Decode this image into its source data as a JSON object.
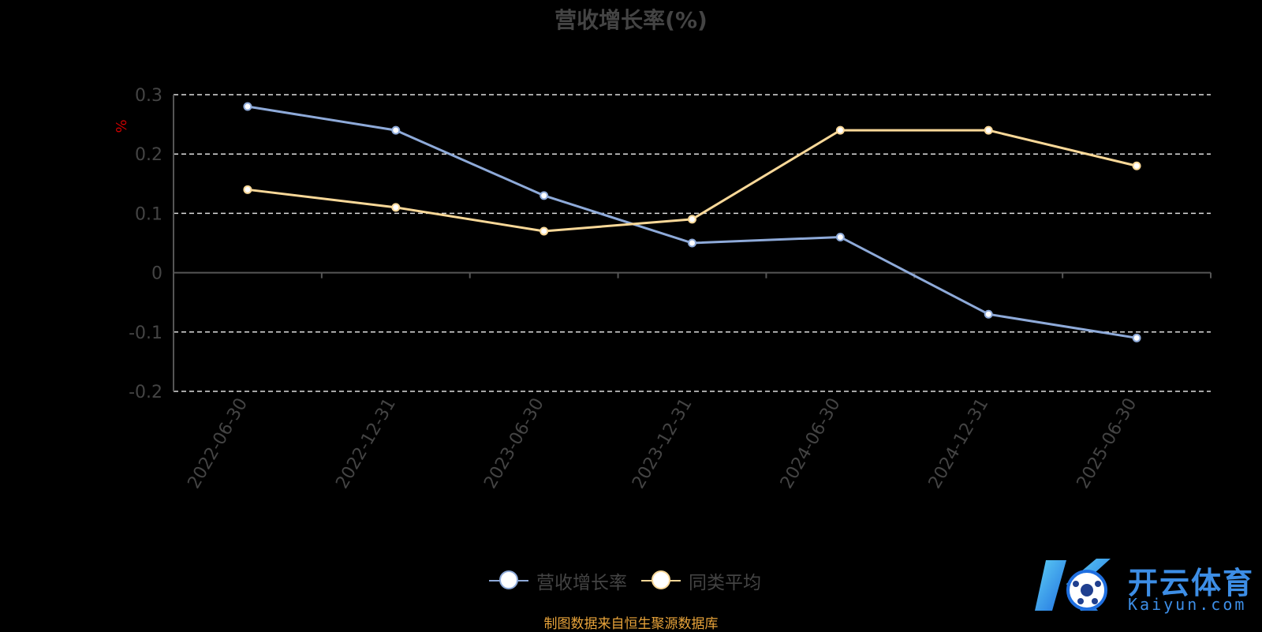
{
  "chart_data": {
    "type": "line",
    "title": "营收增长率(%)",
    "ylabel": "%",
    "xlabel": "",
    "categories": [
      "2022-06-30",
      "2022-12-31",
      "2023-06-30",
      "2023-12-31",
      "2024-06-30",
      "2024-12-31",
      "2025-06-30"
    ],
    "ylim": [
      -0.2,
      0.3
    ],
    "yticks": [
      "-0.2",
      "-0.1",
      "0",
      "0.1",
      "0.2",
      "0.3"
    ],
    "ytick_values": [
      -0.2,
      -0.1,
      0,
      0.1,
      0.2,
      0.3
    ],
    "grid": true,
    "legend_position": "bottom-center",
    "series": [
      {
        "name": "营收增长率",
        "values": [
          0.28,
          0.24,
          0.13,
          0.05,
          0.06,
          -0.07,
          -0.11
        ],
        "color": "#8eaad9"
      },
      {
        "name": "同类平均",
        "values": [
          0.14,
          0.11,
          0.07,
          0.09,
          0.24,
          0.24,
          0.18
        ],
        "color": "#f9d898"
      }
    ]
  },
  "source_note": "制图数据来自恒生聚源数据库",
  "watermark": {
    "name": "开云体育",
    "url": "Kaiyun.com"
  },
  "colors": {
    "background": "#000000",
    "axis": "#555555",
    "grid": "#dddddd",
    "text": "#444444",
    "ylabel": "#cc0000",
    "source": "#e8a33a",
    "brand": "#3d8ee6"
  }
}
